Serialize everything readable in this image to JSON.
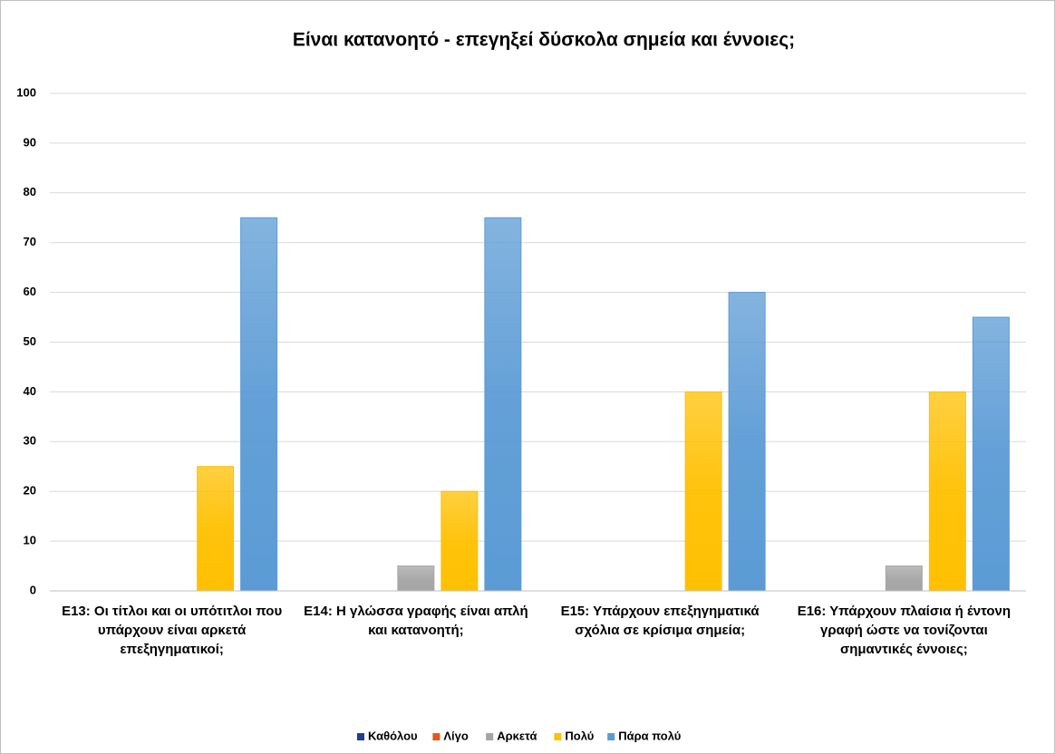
{
  "chart_data": {
    "type": "bar",
    "title": "Είναι κατανοητό - επεγηξεί δύσκολα σημεία και έννοιες;",
    "categories": [
      "Ε13: Οι τίτλοι και οι υπότιτλοι που υπάρχουν είναι αρκετά επεξηγηματικοί;",
      "Ε14: Η γλώσσα γραφής είναι απλή και κατανοητή;",
      "Ε15: Υπάρχουν επεξηγηματικά σχόλια σε κρίσιμα σημεία;",
      "Ε16: Υπάρχουν πλαίσια ή έντονη γραφή ώστε να τονίζονται σημαντικές έννοιες;"
    ],
    "series": [
      {
        "name": "Καθόλου",
        "color": "#203f8f",
        "values": [
          0,
          0,
          0,
          0
        ]
      },
      {
        "name": "Λίγο",
        "color": "#e2591b",
        "values": [
          0,
          0,
          0,
          0
        ]
      },
      {
        "name": "Αρκετά",
        "color": "#a5a5a5",
        "values": [
          0,
          5,
          0,
          5
        ]
      },
      {
        "name": "Πολύ",
        "color": "#ffc000",
        "values": [
          25,
          20,
          40,
          40
        ]
      },
      {
        "name": "Πάρα πολύ",
        "color": "#5b9bd5",
        "values": [
          75,
          75,
          60,
          55
        ]
      }
    ],
    "ylim": [
      0,
      100
    ],
    "yticks": [
      0,
      10,
      20,
      30,
      40,
      50,
      60,
      70,
      80,
      90,
      100
    ],
    "grid": true,
    "legend": "bottom"
  }
}
